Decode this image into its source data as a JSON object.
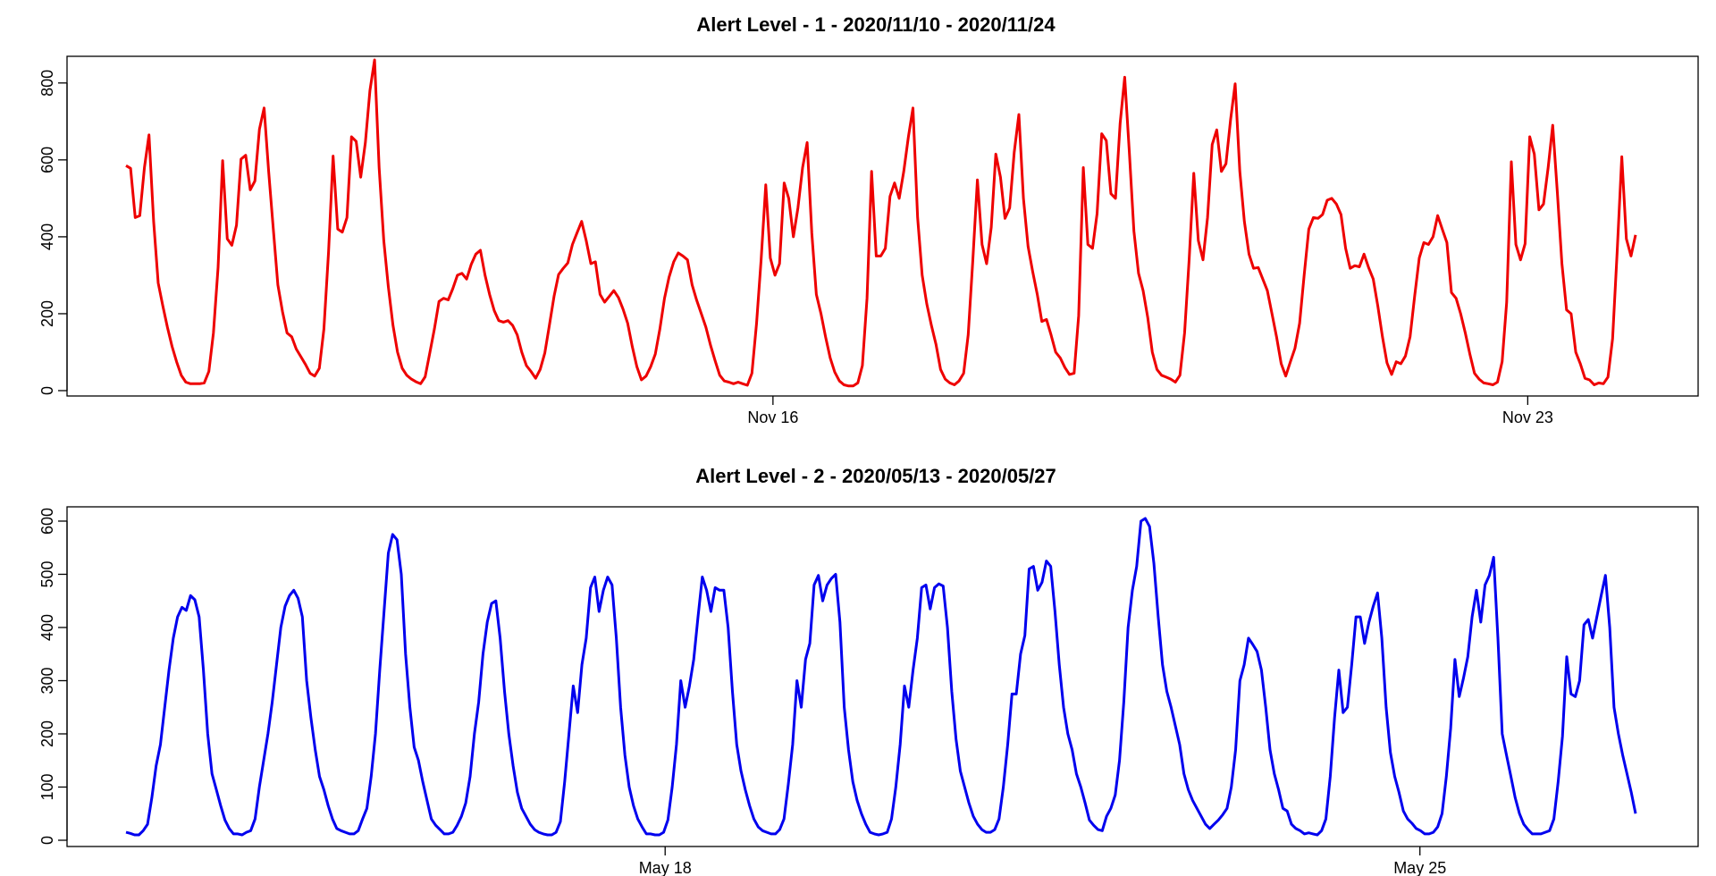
{
  "chart_data": [
    {
      "type": "line",
      "title": "Alert Level - 1 - 2020/11/10 - 2020/11/24",
      "xlabel": "",
      "ylabel": "",
      "x_range": [
        "2020-11-10",
        "2020-11-24"
      ],
      "xlim": [
        "2020-11-10T00:00",
        "2020-11-24T00:00"
      ],
      "x_ticks": [
        {
          "date": "2020-11-16",
          "label": "Nov 16"
        },
        {
          "date": "2020-11-23",
          "label": "Nov 23"
        }
      ],
      "y_ticks": [
        0,
        200,
        400,
        600,
        800
      ],
      "ylim": [
        0,
        860
      ],
      "grid": false,
      "color": "#ee0000",
      "series": [
        {
          "values": [
            585,
            578,
            450,
            455,
            580,
            665,
            440,
            280,
            220,
            165,
            115,
            75,
            40,
            22,
            18,
            18,
            18,
            20,
            50,
            150,
            320,
            598,
            395,
            378,
            430,
            602,
            612,
            522,
            545,
            680,
            735,
            570,
            420,
            275,
            205,
            150,
            140,
            108,
            88,
            68,
            45,
            38,
            58,
            160,
            360,
            610,
            420,
            412,
            450,
            660,
            648,
            555,
            645,
            780,
            860,
            580,
            390,
            270,
            170,
            100,
            58,
            40,
            30,
            23,
            18,
            36,
            98,
            160,
            232,
            240,
            236,
            265,
            300,
            305,
            290,
            328,
            355,
            365,
            300,
            250,
            208,
            182,
            178,
            182,
            170,
            145,
            100,
            65,
            50,
            32,
            55,
            98,
            170,
            245,
            302,
            318,
            332,
            380,
            410,
            440,
            390,
            330,
            335,
            250,
            230,
            245,
            260,
            242,
            212,
            175,
            115,
            62,
            28,
            38,
            62,
            95,
            160,
            240,
            295,
            335,
            358,
            350,
            340,
            275,
            235,
            200,
            165,
            118,
            78,
            40,
            25,
            22,
            18,
            22,
            18,
            14,
            45,
            175,
            340,
            535,
            345,
            300,
            330,
            540,
            500,
            400,
            475,
            580,
            645,
            410,
            250,
            200,
            140,
            85,
            48,
            25,
            15,
            12,
            12,
            20,
            65,
            240,
            570,
            350,
            350,
            370,
            505,
            540,
            500,
            570,
            660,
            735,
            450,
            300,
            225,
            170,
            120,
            55,
            30,
            20,
            15,
            25,
            45,
            145,
            340,
            548,
            380,
            330,
            425,
            615,
            555,
            448,
            475,
            620,
            718,
            500,
            375,
            310,
            250,
            180,
            185,
            145,
            100,
            85,
            60,
            42,
            45,
            195,
            580,
            380,
            370,
            460,
            668,
            650,
            512,
            500,
            695,
            815,
            620,
            415,
            305,
            260,
            190,
            100,
            55,
            40,
            35,
            30,
            22,
            40,
            150,
            340,
            565,
            390,
            340,
            450,
            640,
            678,
            570,
            590,
            705,
            798,
            570,
            440,
            355,
            318,
            320,
            290,
            260,
            200,
            140,
            70,
            38,
            75,
            110,
            175,
            300,
            420,
            450,
            448,
            458,
            495,
            500,
            485,
            458,
            370,
            318,
            325,
            322,
            355,
            320,
            290,
            220,
            140,
            72,
            42,
            75,
            70,
            90,
            140,
            245,
            345,
            385,
            380,
            400,
            455,
            420,
            385,
            255,
            240,
            200,
            150,
            95,
            45,
            30,
            20,
            18,
            15,
            22,
            75,
            230,
            595,
            380,
            340,
            382,
            660,
            615,
            470,
            485,
            580,
            690,
            515,
            330,
            210,
            200,
            100,
            70,
            32,
            28,
            15,
            20,
            18,
            35,
            135,
            360,
            608,
            395,
            350,
            405
          ]
        }
      ]
    },
    {
      "type": "line",
      "title": "Alert Level - 2  - 2020/05/13 - 2020/05/27",
      "xlabel": "",
      "ylabel": "",
      "x_range": [
        "2020-05-13",
        "2020-05-27"
      ],
      "xlim": [
        "2020-05-13T00:00",
        "2020-05-27T00:00"
      ],
      "x_ticks": [
        {
          "date": "2020-05-18",
          "label": "May 18"
        },
        {
          "date": "2020-05-25",
          "label": "May 25"
        }
      ],
      "y_ticks": [
        0,
        100,
        200,
        300,
        400,
        500,
        600
      ],
      "ylim": [
        0,
        605
      ],
      "grid": false,
      "color": "#0000ee",
      "series": [
        {
          "values": [
            15,
            13,
            10,
            10,
            18,
            30,
            80,
            140,
            180,
            250,
            320,
            380,
            420,
            438,
            432,
            460,
            452,
            420,
            320,
            200,
            125,
            95,
            65,
            38,
            22,
            12,
            12,
            10,
            15,
            18,
            40,
            100,
            150,
            200,
            260,
            330,
            400,
            440,
            460,
            470,
            455,
            420,
            300,
            230,
            170,
            120,
            95,
            65,
            40,
            22,
            18,
            15,
            12,
            12,
            18,
            40,
            60,
            120,
            200,
            320,
            430,
            540,
            575,
            565,
            500,
            350,
            250,
            175,
            150,
            110,
            75,
            40,
            28,
            20,
            12,
            12,
            15,
            28,
            45,
            70,
            120,
            200,
            260,
            350,
            410,
            445,
            450,
            380,
            280,
            200,
            140,
            90,
            60,
            45,
            30,
            20,
            15,
            12,
            10,
            10,
            15,
            35,
            110,
            200,
            290,
            240,
            330,
            380,
            475,
            495,
            430,
            470,
            495,
            480,
            380,
            250,
            160,
            100,
            65,
            40,
            25,
            12,
            12,
            10,
            10,
            15,
            38,
            100,
            180,
            300,
            250,
            290,
            340,
            420,
            495,
            470,
            430,
            475,
            470,
            470,
            400,
            280,
            180,
            130,
            95,
            65,
            40,
            25,
            18,
            15,
            12,
            12,
            20,
            40,
            105,
            180,
            300,
            250,
            340,
            370,
            480,
            498,
            450,
            480,
            492,
            500,
            410,
            250,
            170,
            110,
            75,
            50,
            30,
            15,
            12,
            10,
            12,
            15,
            40,
            100,
            180,
            290,
            250,
            320,
            380,
            475,
            480,
            435,
            475,
            482,
            478,
            400,
            280,
            190,
            130,
            100,
            70,
            45,
            30,
            20,
            15,
            15,
            20,
            40,
            100,
            180,
            275,
            275,
            350,
            385,
            510,
            515,
            470,
            485,
            525,
            515,
            430,
            330,
            250,
            200,
            170,
            125,
            100,
            70,
            38,
            28,
            20,
            18,
            45,
            60,
            85,
            150,
            260,
            400,
            470,
            515,
            600,
            605,
            590,
            520,
            420,
            330,
            280,
            250,
            215,
            180,
            125,
            95,
            75,
            60,
            45,
            30,
            22,
            30,
            38,
            48,
            60,
            100,
            170,
            300,
            330,
            380,
            368,
            355,
            320,
            250,
            170,
            125,
            95,
            60,
            55,
            30,
            22,
            18,
            12,
            14,
            12,
            10,
            18,
            40,
            120,
            230,
            320,
            240,
            250,
            330,
            420,
            420,
            370,
            410,
            440,
            465,
            380,
            250,
            165,
            120,
            90,
            55,
            40,
            32,
            22,
            18,
            12,
            12,
            15,
            25,
            50,
            120,
            210,
            340,
            270,
            305,
            345,
            420,
            470,
            410,
            480,
            498,
            532,
            380,
            200,
            160,
            120,
            80,
            50,
            30,
            20,
            12,
            12,
            12,
            15,
            18,
            40,
            110,
            195,
            345,
            275,
            270,
            300,
            405,
            415,
            380,
            420,
            460,
            498,
            400,
            250,
            200,
            160,
            125,
            90,
            50
          ]
        }
      ]
    }
  ]
}
